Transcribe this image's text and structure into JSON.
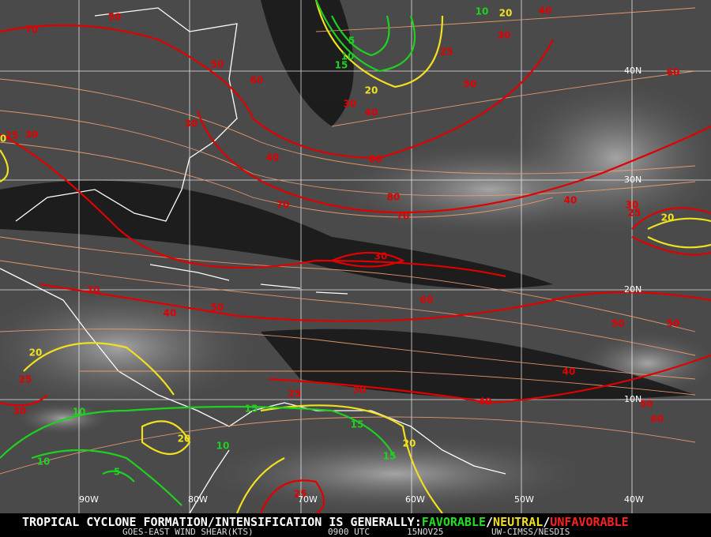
{
  "map": {
    "lat_labels": [
      "40N",
      "30N",
      "20N",
      "10N"
    ],
    "lon_labels": [
      "90W",
      "80W",
      "70W",
      "60W",
      "50W",
      "40W"
    ],
    "shear_labels": [
      {
        "color": "#e00000",
        "values": [
          50,
          70,
          40,
          50,
          60,
          30,
          25,
          50,
          60,
          30,
          40,
          30,
          40,
          60,
          25,
          30,
          80,
          70,
          70,
          40,
          30,
          25,
          30,
          60,
          70,
          50,
          40,
          50,
          50,
          25,
          40,
          25,
          30,
          40,
          50,
          60,
          30,
          25
        ]
      },
      {
        "color": "#f0e020",
        "values": [
          0,
          20,
          20,
          20,
          20,
          20,
          20
        ]
      },
      {
        "color": "#20d020",
        "values": [
          10,
          5,
          10,
          15,
          15,
          10,
          15,
          15,
          10,
          10,
          5
        ]
      }
    ],
    "footer": {
      "statement": "TROPICAL CYCLONE FORMATION/INTENSIFICATION IS GENERALLY:",
      "favorable": "FAVORABLE",
      "separator": "/",
      "neutral": "NEUTRAL",
      "unfavorable": "UNFAVORABLE",
      "product": "GOES-EAST WIND SHEAR(KTS)",
      "time": "0900 UTC",
      "date": "15NOV25",
      "source": "UW-CIMSS/NESDIS"
    }
  }
}
